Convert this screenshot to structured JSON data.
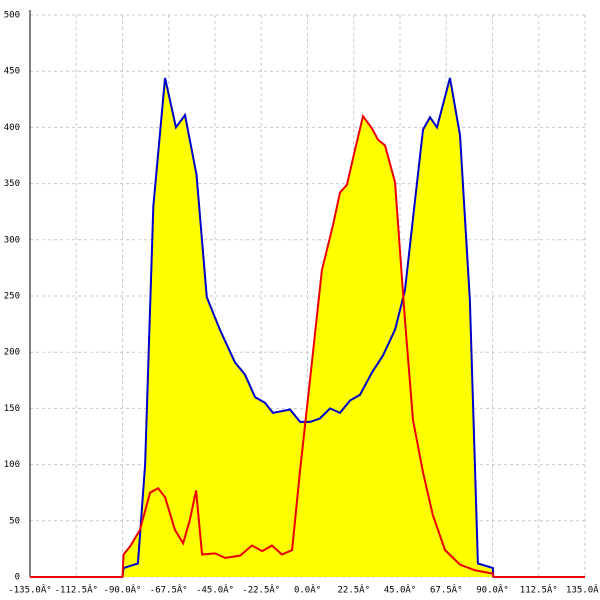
{
  "chart_data": {
    "type": "area-line",
    "xlim": [
      -135,
      135
    ],
    "ylim": [
      0,
      500
    ],
    "xticks": [
      {
        "value": -135,
        "label": "-135.0Â°"
      },
      {
        "value": -112.5,
        "label": "-112.5Â°"
      },
      {
        "value": -90,
        "label": "-90.0Â°"
      },
      {
        "value": -67.5,
        "label": "-67.5Â°"
      },
      {
        "value": -45,
        "label": "-45.0Â°"
      },
      {
        "value": -22.5,
        "label": "-22.5Â°"
      },
      {
        "value": 0,
        "label": "0.0Â°"
      },
      {
        "value": 22.5,
        "label": "22.5Â°"
      },
      {
        "value": 45,
        "label": "45.0Â°"
      },
      {
        "value": 67.5,
        "label": "67.5Â°"
      },
      {
        "value": 90,
        "label": "90.0Â°"
      },
      {
        "value": 112.5,
        "label": "112.5Â°"
      },
      {
        "value": 135,
        "label": "135.0Â°"
      }
    ],
    "yticks": [
      0,
      50,
      100,
      150,
      200,
      250,
      300,
      350,
      400,
      450,
      500
    ],
    "grid": true,
    "fill_color": "#ffff00",
    "series": [
      {
        "color": "#0000cc",
        "x": [
          -90,
          -89.5,
          -82.5,
          -79,
          -75,
          -69.3,
          -64,
          -59.6,
          -54,
          -49,
          -42.6,
          -35.3,
          -30.4,
          -25.5,
          -20.7,
          -16.8,
          -8.5,
          -3.6,
          1.2,
          6,
          11,
          15.8,
          20.7,
          25.5,
          31.4,
          36.7,
          42.6,
          47.4,
          52.3,
          56.2,
          59.6,
          63,
          69.3,
          74.2,
          79,
          82.9,
          90.2,
          90.3
        ],
        "values": [
          0,
          8,
          12,
          100,
          330,
          444,
          400,
          411,
          358,
          249,
          220,
          191,
          180,
          160,
          155,
          146,
          149,
          138,
          138,
          141,
          150,
          146,
          157,
          162,
          182,
          197,
          220,
          255,
          335,
          398,
          409,
          400,
          444,
          393,
          246,
          12,
          8,
          0
        ]
      },
      {
        "color": "#ee0000",
        "x": [
          -135,
          -90,
          -89.5,
          -86,
          -81.5,
          -76.6,
          -72.7,
          -69.3,
          -64.5,
          -60.5,
          -57.2,
          -54.2,
          -51.3,
          -45,
          -40,
          -32.8,
          -27,
          -22,
          -17.3,
          -12.4,
          -7.5,
          -3.6,
          1.2,
          7,
          12.4,
          15.8,
          19.2,
          23.1,
          27,
          31.4,
          34.3,
          37.7,
          42.6,
          47.4,
          51.3,
          56.2,
          61,
          66.9,
          74.2,
          81.5,
          90.2,
          90.5,
          135
        ],
        "values": [
          0,
          0,
          20,
          28,
          42,
          75,
          79,
          71,
          42,
          30,
          51,
          77,
          20,
          21,
          17,
          19,
          28,
          23,
          28,
          20,
          24,
          95,
          175,
          273,
          313,
          342,
          349,
          380,
          410,
          399,
          389,
          384,
          351,
          229,
          140,
          93,
          55,
          24,
          11,
          6,
          3,
          0,
          0
        ]
      }
    ]
  }
}
